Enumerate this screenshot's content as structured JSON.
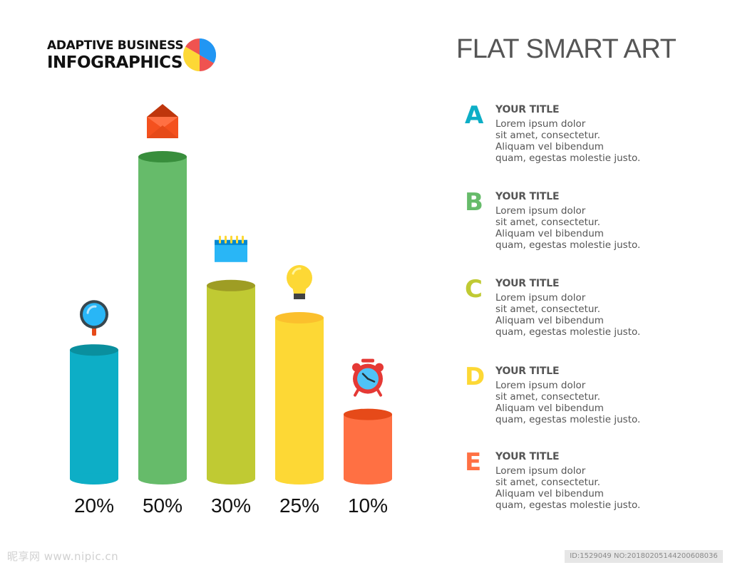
{
  "header": {
    "brand_line1": "ADAPTIVE BUSINESS",
    "brand_line2": "INFOGRAPHICS",
    "title": "FLAT SMART ART"
  },
  "chart_data": {
    "type": "bar",
    "categories": [
      "A",
      "B",
      "C",
      "D",
      "E"
    ],
    "values": [
      20,
      50,
      30,
      25,
      10
    ],
    "value_labels": [
      "20%",
      "50%",
      "30%",
      "25%",
      "10%"
    ],
    "colors": [
      "#0DAEC6",
      "#66BB6A",
      "#C0CA33",
      "#FDD835",
      "#FF7043"
    ],
    "cap_colors": [
      "#0A8F9E",
      "#388E3C",
      "#9E9D24",
      "#FBC02D",
      "#E64A19"
    ],
    "icons": [
      "magnifier-icon",
      "envelope-icon",
      "calendar-icon",
      "lightbulb-icon",
      "alarm-clock-icon"
    ],
    "title": "",
    "xlabel": "",
    "ylabel": "",
    "ylim": [
      0,
      50
    ],
    "grid": false
  },
  "legend": [
    {
      "letter": "A",
      "color": "#0DAEC6",
      "title": "YOUR TITLE",
      "lines": [
        "Lorem ipsum dolor",
        "sit amet, consectetur.",
        "Aliquam vel bibendum",
        "quam, egestas molestie justo."
      ]
    },
    {
      "letter": "B",
      "color": "#66BB6A",
      "title": "YOUR TITLE",
      "lines": [
        "Lorem ipsum dolor",
        "sit amet, consectetur.",
        "Aliquam vel bibendum",
        "quam, egestas molestie justo."
      ]
    },
    {
      "letter": "C",
      "color": "#C0CA33",
      "title": "YOUR TITLE",
      "lines": [
        "Lorem ipsum dolor",
        "sit amet, consectetur.",
        "Aliquam vel bibendum",
        "quam, egestas molestie justo."
      ]
    },
    {
      "letter": "D",
      "color": "#FDD835",
      "title": "YOUR TITLE",
      "lines": [
        "Lorem ipsum dolor",
        "sit amet, consectetur.",
        "Aliquam vel bibendum",
        "quam, egestas molestie justo."
      ]
    },
    {
      "letter": "E",
      "color": "#FF7043",
      "title": "YOUR TITLE",
      "lines": [
        "Lorem ipsum dolor",
        "sit amet, consectetur.",
        "Aliquam vel bibendum",
        "quam, egestas molestie justo."
      ]
    }
  ],
  "watermark": {
    "left": "昵享网 www.nipic.cn",
    "right": "ID:1529049 NO:20180205144200608036"
  }
}
